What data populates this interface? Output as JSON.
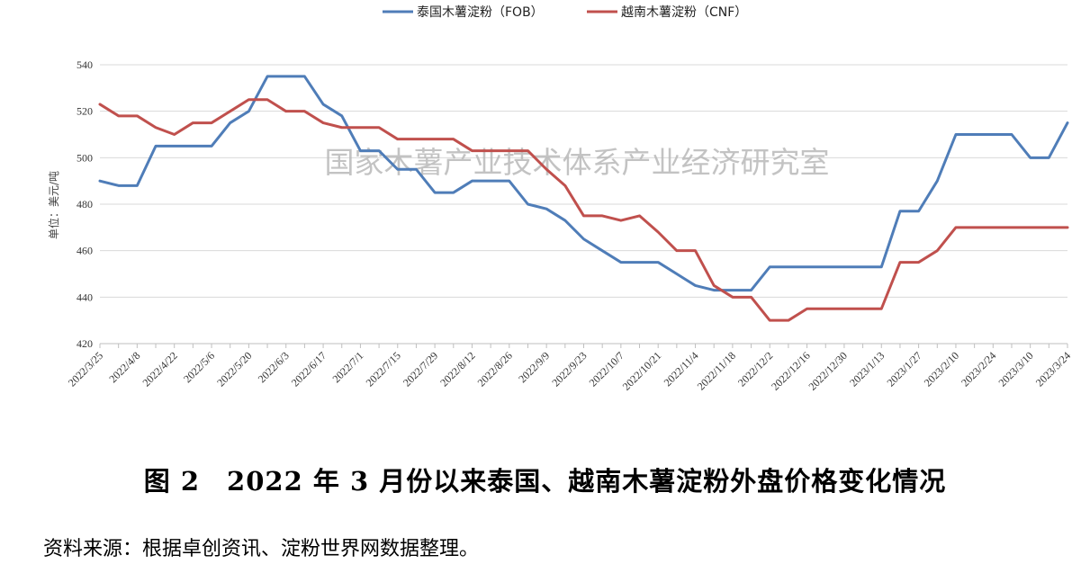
{
  "figure_title": "图 2　2022 年 3 月份以来泰国、越南木薯淀粉外盘价格变化情况",
  "source_note": "资料来源：根据卓创资讯、淀粉世界网数据整理。",
  "watermark": "国家木薯产业技术体系产业经济研究室",
  "chart_data": {
    "type": "line",
    "ylabel": "单位：美元/吨",
    "ylim": [
      420,
      540
    ],
    "yticks": [
      420,
      440,
      460,
      480,
      500,
      520,
      540
    ],
    "grid": true,
    "legend_position": "top-center",
    "x": [
      "2022/3/25",
      "2022/4/1",
      "2022/4/8",
      "2022/4/15",
      "2022/4/22",
      "2022/4/29",
      "2022/5/6",
      "2022/5/13",
      "2022/5/20",
      "2022/5/27",
      "2022/6/3",
      "2022/6/10",
      "2022/6/17",
      "2022/6/24",
      "2022/7/1",
      "2022/7/8",
      "2022/7/15",
      "2022/7/22",
      "2022/7/29",
      "2022/8/5",
      "2022/8/12",
      "2022/8/19",
      "2022/8/26",
      "2022/9/2",
      "2022/9/9",
      "2022/9/16",
      "2022/9/23",
      "2022/9/30",
      "2022/10/7",
      "2022/10/14",
      "2022/10/21",
      "2022/10/28",
      "2022/11/4",
      "2022/11/11",
      "2022/11/18",
      "2022/11/25",
      "2022/12/2",
      "2022/12/9",
      "2022/12/16",
      "2022/12/23",
      "2022/12/30",
      "2023/1/6",
      "2023/1/13",
      "2023/1/20",
      "2023/1/27",
      "2023/2/3",
      "2023/2/10",
      "2023/2/17",
      "2023/2/24",
      "2023/3/3",
      "2023/3/10",
      "2023/3/17",
      "2023/3/24"
    ],
    "xtick_labels": [
      "2022/3/25",
      "2022/4/8",
      "2022/4/22",
      "2022/5/6",
      "2022/5/20",
      "2022/6/3",
      "2022/6/17",
      "2022/7/1",
      "2022/7/15",
      "2022/7/29",
      "2022/8/12",
      "2022/8/26",
      "2022/9/9",
      "2022/9/23",
      "2022/10/7",
      "2022/10/21",
      "2022/11/4",
      "2022/11/18",
      "2022/12/2",
      "2022/12/16",
      "2022/12/30",
      "2023/1/13",
      "2023/1/27",
      "2023/2/10",
      "2023/2/24",
      "2023/3/10",
      "2023/3/24"
    ],
    "series": [
      {
        "name": "泰国木薯淀粉（FOB）",
        "color": "#4f7db8",
        "values": [
          490,
          488,
          488,
          505,
          505,
          505,
          505,
          515,
          520,
          535,
          535,
          535,
          523,
          518,
          503,
          503,
          495,
          495,
          485,
          485,
          490,
          490,
          490,
          480,
          478,
          473,
          465,
          460,
          455,
          455,
          455,
          450,
          445,
          443,
          443,
          443,
          453,
          453,
          453,
          453,
          453,
          453,
          453,
          477,
          477,
          490,
          510,
          510,
          510,
          510,
          500,
          500,
          515
        ]
      },
      {
        "name": "越南木薯淀粉（CNF）",
        "color": "#c0504d",
        "values": [
          523,
          518,
          518,
          513,
          510,
          515,
          515,
          520,
          525,
          525,
          520,
          520,
          515,
          513,
          513,
          513,
          508,
          508,
          508,
          508,
          503,
          503,
          503,
          503,
          495,
          488,
          475,
          475,
          473,
          475,
          468,
          460,
          460,
          445,
          440,
          440,
          430,
          430,
          435,
          435,
          435,
          435,
          435,
          455,
          455,
          460,
          470,
          470,
          470,
          470,
          470,
          470,
          470
        ]
      }
    ]
  }
}
